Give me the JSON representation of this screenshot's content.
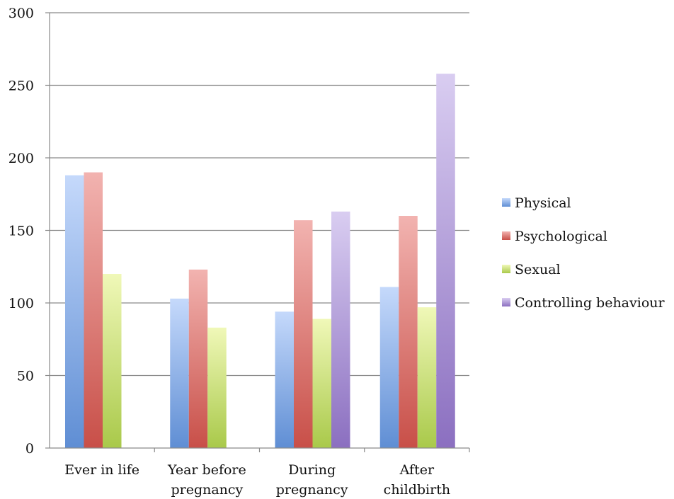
{
  "chart_data": {
    "type": "bar",
    "title": "",
    "xlabel": "",
    "ylabel": "",
    "ylim": [
      0,
      300
    ],
    "yticks": [
      0,
      50,
      100,
      150,
      200,
      250,
      300
    ],
    "grid": true,
    "legend_position": "right",
    "categories": [
      [
        "Ever in life"
      ],
      [
        "Year before",
        "pregnancy"
      ],
      [
        "During",
        "pregnancy"
      ],
      [
        "After",
        "childbirth"
      ]
    ],
    "series": [
      {
        "name": "Physical",
        "color_top": "#c5d9fb",
        "color_bottom": "#5f8ed4",
        "values": [
          188,
          103,
          94,
          111
        ]
      },
      {
        "name": "Psychological",
        "color_top": "#f2b3b0",
        "color_bottom": "#c84f48",
        "values": [
          190,
          123,
          157,
          160
        ]
      },
      {
        "name": "Sexual",
        "color_top": "#f0f8b8",
        "color_bottom": "#a9c94a",
        "values": [
          120,
          83,
          89,
          97
        ]
      },
      {
        "name": "Controlling behaviour",
        "color_top": "#d9cdf1",
        "color_bottom": "#8b6fc0",
        "values": [
          null,
          null,
          163,
          258
        ]
      }
    ]
  }
}
